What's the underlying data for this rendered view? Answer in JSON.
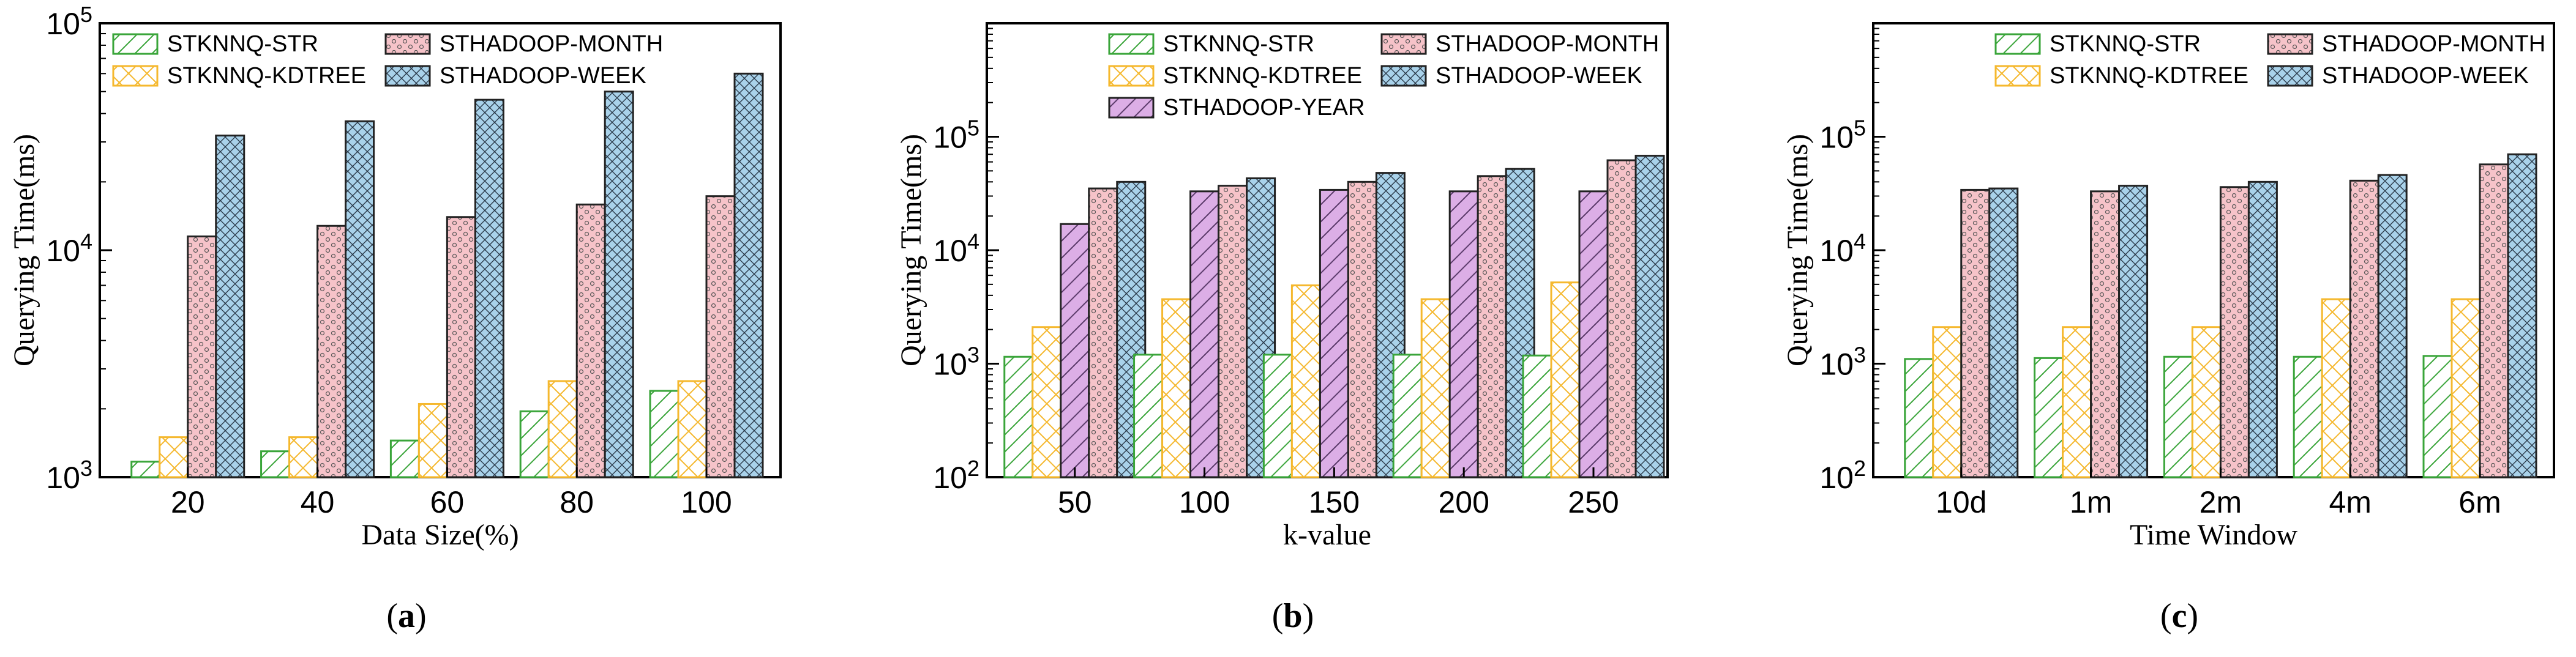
{
  "colors": {
    "STKNNQ-STR": "#3aa53a",
    "STKNNQ-KDTREE": "#f5b82e",
    "STHADOOP-YEAR": "#dcaee6",
    "STHADOOP-MONTH": "#f6c3c9",
    "STHADOOP-WEEK": "#a9d2ea"
  },
  "patterns": {
    "STKNNQ-STR": "diagonal",
    "STKNNQ-KDTREE": "cross",
    "STHADOOP-YEAR": "diagonal",
    "STHADOOP-MONTH": "dots",
    "STHADOOP-WEEK": "crosshatch"
  },
  "chart_data": [
    {
      "type": "bar",
      "panel": "(a)",
      "panel_letter": "a",
      "xlabel": "Data Size(%)",
      "ylabel": "Querying Time(ms)",
      "yscale": "log",
      "ylim": [
        1000,
        100000
      ],
      "yticks": [
        {
          "value": 1000,
          "label": "10",
          "exp": "3"
        },
        {
          "value": 10000,
          "label": "10",
          "exp": "4"
        },
        {
          "value": 100000,
          "label": "10",
          "exp": "5"
        }
      ],
      "categories": [
        "20",
        "40",
        "60",
        "80",
        "100"
      ],
      "legend": {
        "placement": "top-left",
        "columns": 2
      },
      "series": [
        {
          "name": "STKNNQ-STR",
          "values": [
            1170,
            1300,
            1450,
            1950,
            2400
          ]
        },
        {
          "name": "STKNNQ-KDTREE",
          "values": [
            1500,
            1500,
            2100,
            2650,
            2650
          ]
        },
        {
          "name": "STHADOOP-MONTH",
          "values": [
            11500,
            12800,
            14000,
            15900,
            17300
          ]
        },
        {
          "name": "STHADOOP-WEEK",
          "values": [
            32000,
            37000,
            46000,
            50000,
            60000
          ]
        }
      ]
    },
    {
      "type": "bar",
      "panel": "(b)",
      "panel_letter": "b",
      "xlabel": "k-value",
      "ylabel": "Querying Time(ms)",
      "yscale": "log",
      "ylim": [
        100,
        1000000
      ],
      "yticks": [
        {
          "value": 100,
          "label": "10",
          "exp": "2"
        },
        {
          "value": 1000,
          "label": "10",
          "exp": "3"
        },
        {
          "value": 10000,
          "label": "10",
          "exp": "4"
        },
        {
          "value": 100000,
          "label": "10",
          "exp": "5"
        }
      ],
      "categories": [
        "50",
        "100",
        "150",
        "200",
        "250"
      ],
      "legend": {
        "placement": "top-right",
        "columns": 2
      },
      "series": [
        {
          "name": "STKNNQ-STR",
          "values": [
            1150,
            1200,
            1200,
            1200,
            1180
          ]
        },
        {
          "name": "STKNNQ-KDTREE",
          "values": [
            2100,
            3700,
            4900,
            3700,
            5200
          ]
        },
        {
          "name": "STHADOOP-YEAR",
          "values": [
            17000,
            33000,
            34000,
            33000,
            33000
          ]
        },
        {
          "name": "STHADOOP-MONTH",
          "values": [
            35000,
            37000,
            40000,
            45000,
            62000
          ]
        },
        {
          "name": "STHADOOP-WEEK",
          "values": [
            40000,
            43000,
            48000,
            52000,
            68000
          ]
        }
      ]
    },
    {
      "type": "bar",
      "panel": "(c)",
      "panel_letter": "c",
      "xlabel": "Time Window",
      "ylabel": "Querying Time(ms)",
      "yscale": "log",
      "ylim": [
        100,
        1000000
      ],
      "yticks": [
        {
          "value": 100,
          "label": "10",
          "exp": "2"
        },
        {
          "value": 1000,
          "label": "10",
          "exp": "3"
        },
        {
          "value": 10000,
          "label": "10",
          "exp": "4"
        },
        {
          "value": 100000,
          "label": "10",
          "exp": "5"
        }
      ],
      "categories": [
        "10d",
        "1m",
        "2m",
        "4m",
        "6m"
      ],
      "legend": {
        "placement": "top-right",
        "columns": 2
      },
      "series": [
        {
          "name": "STKNNQ-STR",
          "values": [
            1100,
            1120,
            1150,
            1150,
            1170
          ]
        },
        {
          "name": "STKNNQ-KDTREE",
          "values": [
            2100,
            2100,
            2100,
            3700,
            3700
          ]
        },
        {
          "name": "STHADOOP-MONTH",
          "values": [
            34000,
            33000,
            36000,
            41000,
            57000
          ]
        },
        {
          "name": "STHADOOP-WEEK",
          "values": [
            35000,
            37000,
            40000,
            46000,
            70000
          ]
        }
      ]
    }
  ]
}
